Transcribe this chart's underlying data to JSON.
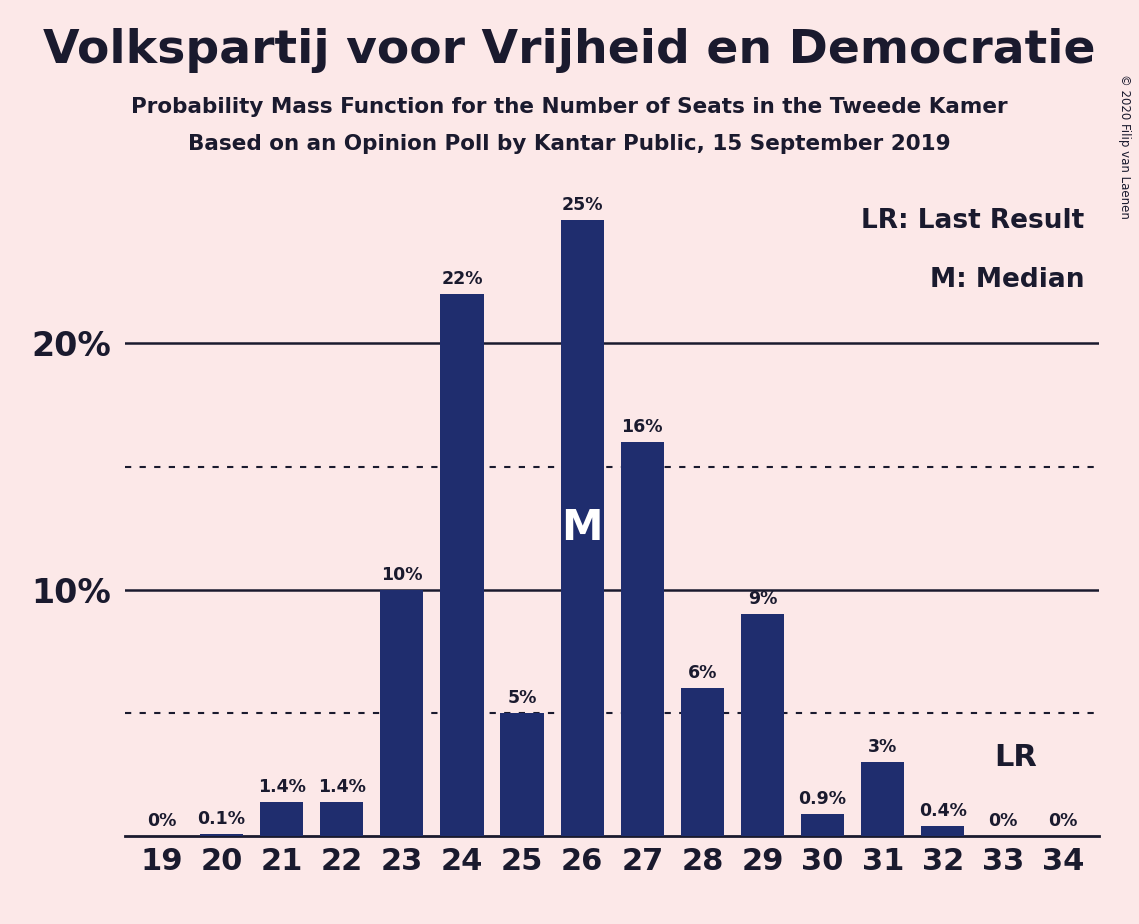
{
  "title": "Volkspartij voor Vrijheid en Democratie",
  "subtitle1": "Probability Mass Function for the Number of Seats in the Tweede Kamer",
  "subtitle2": "Based on an Opinion Poll by Kantar Public, 15 September 2019",
  "copyright": "© 2020 Filip van Laenen",
  "categories": [
    19,
    20,
    21,
    22,
    23,
    24,
    25,
    26,
    27,
    28,
    29,
    30,
    31,
    32,
    33,
    34
  ],
  "values": [
    0.0,
    0.1,
    1.4,
    1.4,
    10.0,
    22.0,
    5.0,
    25.0,
    16.0,
    6.0,
    9.0,
    0.9,
    3.0,
    0.4,
    0.0,
    0.0
  ],
  "labels": [
    "0%",
    "0.1%",
    "1.4%",
    "1.4%",
    "10%",
    "22%",
    "5%",
    "25%",
    "16%",
    "6%",
    "9%",
    "0.9%",
    "3%",
    "0.4%",
    "0%",
    "0%"
  ],
  "bar_color": "#1f2d6e",
  "background_color": "#fce8e8",
  "text_color": "#1a1a2e",
  "median_seat": 26,
  "lr_seat": 32,
  "lr_label": "LR",
  "median_label": "M",
  "ylim": [
    0,
    27
  ],
  "solid_yticks": [
    10,
    20
  ],
  "dotted_yticks": [
    5,
    15
  ],
  "legend_lr": "LR: Last Result",
  "legend_m": "M: Median"
}
